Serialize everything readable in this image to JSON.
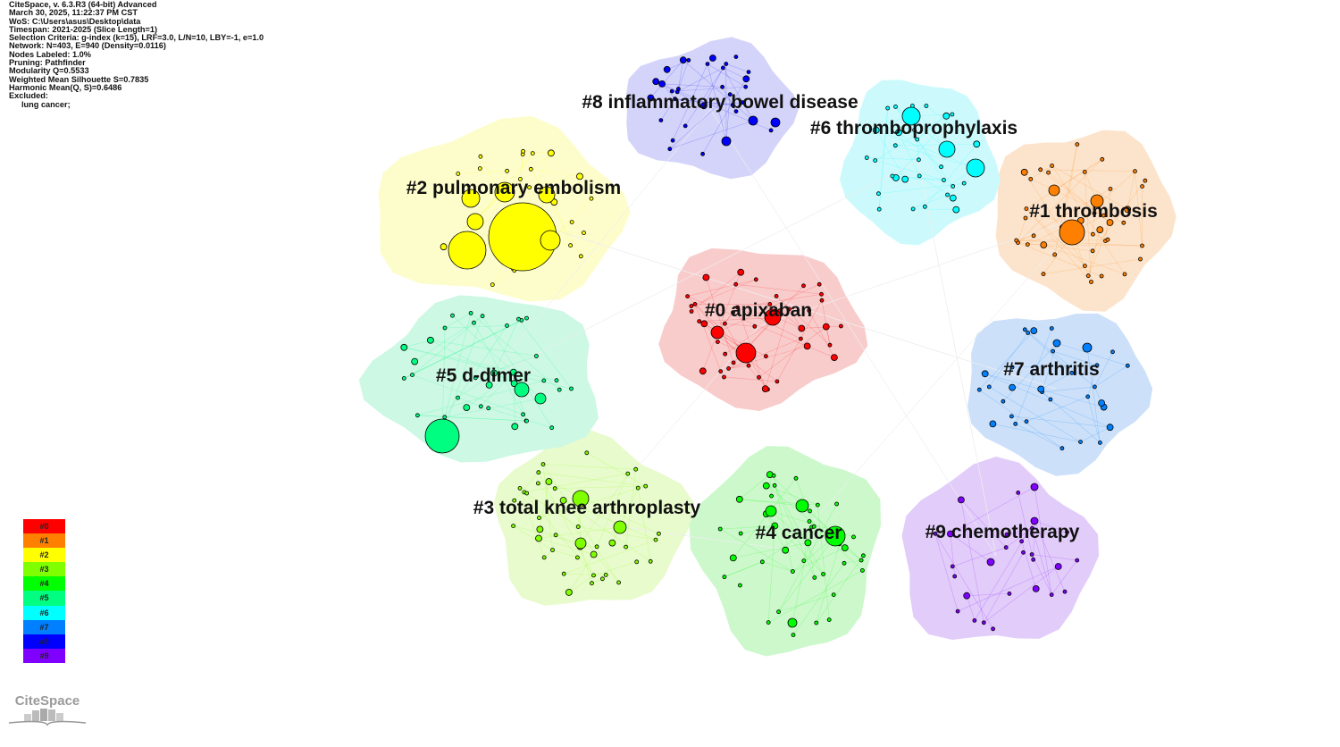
{
  "info": {
    "lines": [
      "CiteSpace, v. 6.3.R3 (64-bit) Advanced",
      "March 30, 2025, 11:22:37 PM CST",
      "WoS: C:\\Users\\asus\\Desktop\\data",
      "Timespan: 2021-2025 (Slice Length=1)",
      "Selection Criteria: g-index (k=15), LRF=3.0, L/N=10, LBY=-1, e=1.0",
      "Network: N=403, E=940 (Density=0.0116)",
      "Nodes Labeled: 1.0%",
      "Pruning: Pathfinder",
      "Modularity Q=0.5533",
      "Weighted Mean Silhouette S=0.7835",
      "Harmonic Mean(Q, S)=0.6486",
      "Excluded:"
    ],
    "excluded": "lung cancer;"
  },
  "clusters": [
    {
      "id": "#0",
      "label": "#0 apixaban",
      "color": "#ff0000",
      "area_color": "#f9cccc"
    },
    {
      "id": "#1",
      "label": "#1 thrombosis",
      "color": "#ff8000",
      "area_color": "#fce4cc"
    },
    {
      "id": "#2",
      "label": "#2 pulmonary embolism",
      "color": "#ffff00",
      "area_color": "#fdfdcc"
    },
    {
      "id": "#3",
      "label": "#3 total knee arthroplasty",
      "color": "#80ff00",
      "area_color": "#e8fbcc"
    },
    {
      "id": "#4",
      "label": "#4 cancer",
      "color": "#00ff00",
      "area_color": "#ccf8cc"
    },
    {
      "id": "#5",
      "label": "#5 d-dimer",
      "color": "#00ff80",
      "area_color": "#ccf8e4"
    },
    {
      "id": "#6",
      "label": "#6 thromboprophylaxis",
      "color": "#00ffff",
      "area_color": "#ccfafc"
    },
    {
      "id": "#7",
      "label": "#7 arthritis",
      "color": "#0080ff",
      "area_color": "#cce0f9"
    },
    {
      "id": "#8",
      "label": "#8 inflammatory bowel disease",
      "color": "#0000ff",
      "area_color": "#d4d4fa"
    },
    {
      "id": "#9",
      "label": "#9 chemotherapy",
      "color": "#8000ff",
      "area_color": "#e2ccfa"
    }
  ],
  "logo": "CiteSpace"
}
